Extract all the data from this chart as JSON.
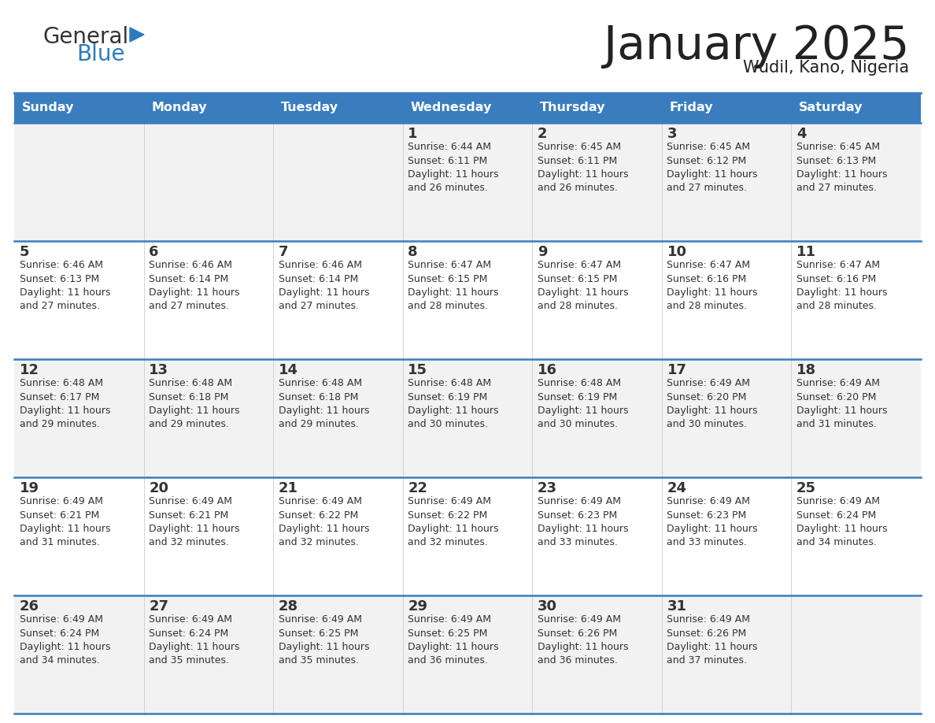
{
  "title": "January 2025",
  "subtitle": "Wudil, Kano, Nigeria",
  "days_of_week": [
    "Sunday",
    "Monday",
    "Tuesday",
    "Wednesday",
    "Thursday",
    "Friday",
    "Saturday"
  ],
  "header_bg": "#3a7dbf",
  "header_text_color": "#ffffff",
  "row_bg_light": "#f2f2f2",
  "row_bg_white": "#ffffff",
  "border_color": "#3a7dbf",
  "text_color": "#333333",
  "title_color": "#222222",
  "logo_general_color": "#333333",
  "logo_blue_color": "#2d7abf",
  "calendar_data": [
    [
      null,
      null,
      null,
      {
        "day": 1,
        "sunrise": "6:44 AM",
        "sunset": "6:11 PM",
        "daylight": "11 hours and 26 minutes"
      },
      {
        "day": 2,
        "sunrise": "6:45 AM",
        "sunset": "6:11 PM",
        "daylight": "11 hours and 26 minutes"
      },
      {
        "day": 3,
        "sunrise": "6:45 AM",
        "sunset": "6:12 PM",
        "daylight": "11 hours and 27 minutes"
      },
      {
        "day": 4,
        "sunrise": "6:45 AM",
        "sunset": "6:13 PM",
        "daylight": "11 hours and 27 minutes"
      }
    ],
    [
      {
        "day": 5,
        "sunrise": "6:46 AM",
        "sunset": "6:13 PM",
        "daylight": "11 hours and 27 minutes"
      },
      {
        "day": 6,
        "sunrise": "6:46 AM",
        "sunset": "6:14 PM",
        "daylight": "11 hours and 27 minutes"
      },
      {
        "day": 7,
        "sunrise": "6:46 AM",
        "sunset": "6:14 PM",
        "daylight": "11 hours and 27 minutes"
      },
      {
        "day": 8,
        "sunrise": "6:47 AM",
        "sunset": "6:15 PM",
        "daylight": "11 hours and 28 minutes"
      },
      {
        "day": 9,
        "sunrise": "6:47 AM",
        "sunset": "6:15 PM",
        "daylight": "11 hours and 28 minutes"
      },
      {
        "day": 10,
        "sunrise": "6:47 AM",
        "sunset": "6:16 PM",
        "daylight": "11 hours and 28 minutes"
      },
      {
        "day": 11,
        "sunrise": "6:47 AM",
        "sunset": "6:16 PM",
        "daylight": "11 hours and 28 minutes"
      }
    ],
    [
      {
        "day": 12,
        "sunrise": "6:48 AM",
        "sunset": "6:17 PM",
        "daylight": "11 hours and 29 minutes"
      },
      {
        "day": 13,
        "sunrise": "6:48 AM",
        "sunset": "6:18 PM",
        "daylight": "11 hours and 29 minutes"
      },
      {
        "day": 14,
        "sunrise": "6:48 AM",
        "sunset": "6:18 PM",
        "daylight": "11 hours and 29 minutes"
      },
      {
        "day": 15,
        "sunrise": "6:48 AM",
        "sunset": "6:19 PM",
        "daylight": "11 hours and 30 minutes"
      },
      {
        "day": 16,
        "sunrise": "6:48 AM",
        "sunset": "6:19 PM",
        "daylight": "11 hours and 30 minutes"
      },
      {
        "day": 17,
        "sunrise": "6:49 AM",
        "sunset": "6:20 PM",
        "daylight": "11 hours and 30 minutes"
      },
      {
        "day": 18,
        "sunrise": "6:49 AM",
        "sunset": "6:20 PM",
        "daylight": "11 hours and 31 minutes"
      }
    ],
    [
      {
        "day": 19,
        "sunrise": "6:49 AM",
        "sunset": "6:21 PM",
        "daylight": "11 hours and 31 minutes"
      },
      {
        "day": 20,
        "sunrise": "6:49 AM",
        "sunset": "6:21 PM",
        "daylight": "11 hours and 32 minutes"
      },
      {
        "day": 21,
        "sunrise": "6:49 AM",
        "sunset": "6:22 PM",
        "daylight": "11 hours and 32 minutes"
      },
      {
        "day": 22,
        "sunrise": "6:49 AM",
        "sunset": "6:22 PM",
        "daylight": "11 hours and 32 minutes"
      },
      {
        "day": 23,
        "sunrise": "6:49 AM",
        "sunset": "6:23 PM",
        "daylight": "11 hours and 33 minutes"
      },
      {
        "day": 24,
        "sunrise": "6:49 AM",
        "sunset": "6:23 PM",
        "daylight": "11 hours and 33 minutes"
      },
      {
        "day": 25,
        "sunrise": "6:49 AM",
        "sunset": "6:24 PM",
        "daylight": "11 hours and 34 minutes"
      }
    ],
    [
      {
        "day": 26,
        "sunrise": "6:49 AM",
        "sunset": "6:24 PM",
        "daylight": "11 hours and 34 minutes"
      },
      {
        "day": 27,
        "sunrise": "6:49 AM",
        "sunset": "6:24 PM",
        "daylight": "11 hours and 35 minutes"
      },
      {
        "day": 28,
        "sunrise": "6:49 AM",
        "sunset": "6:25 PM",
        "daylight": "11 hours and 35 minutes"
      },
      {
        "day": 29,
        "sunrise": "6:49 AM",
        "sunset": "6:25 PM",
        "daylight": "11 hours and 36 minutes"
      },
      {
        "day": 30,
        "sunrise": "6:49 AM",
        "sunset": "6:26 PM",
        "daylight": "11 hours and 36 minutes"
      },
      {
        "day": 31,
        "sunrise": "6:49 AM",
        "sunset": "6:26 PM",
        "daylight": "11 hours and 37 minutes"
      },
      null
    ]
  ]
}
